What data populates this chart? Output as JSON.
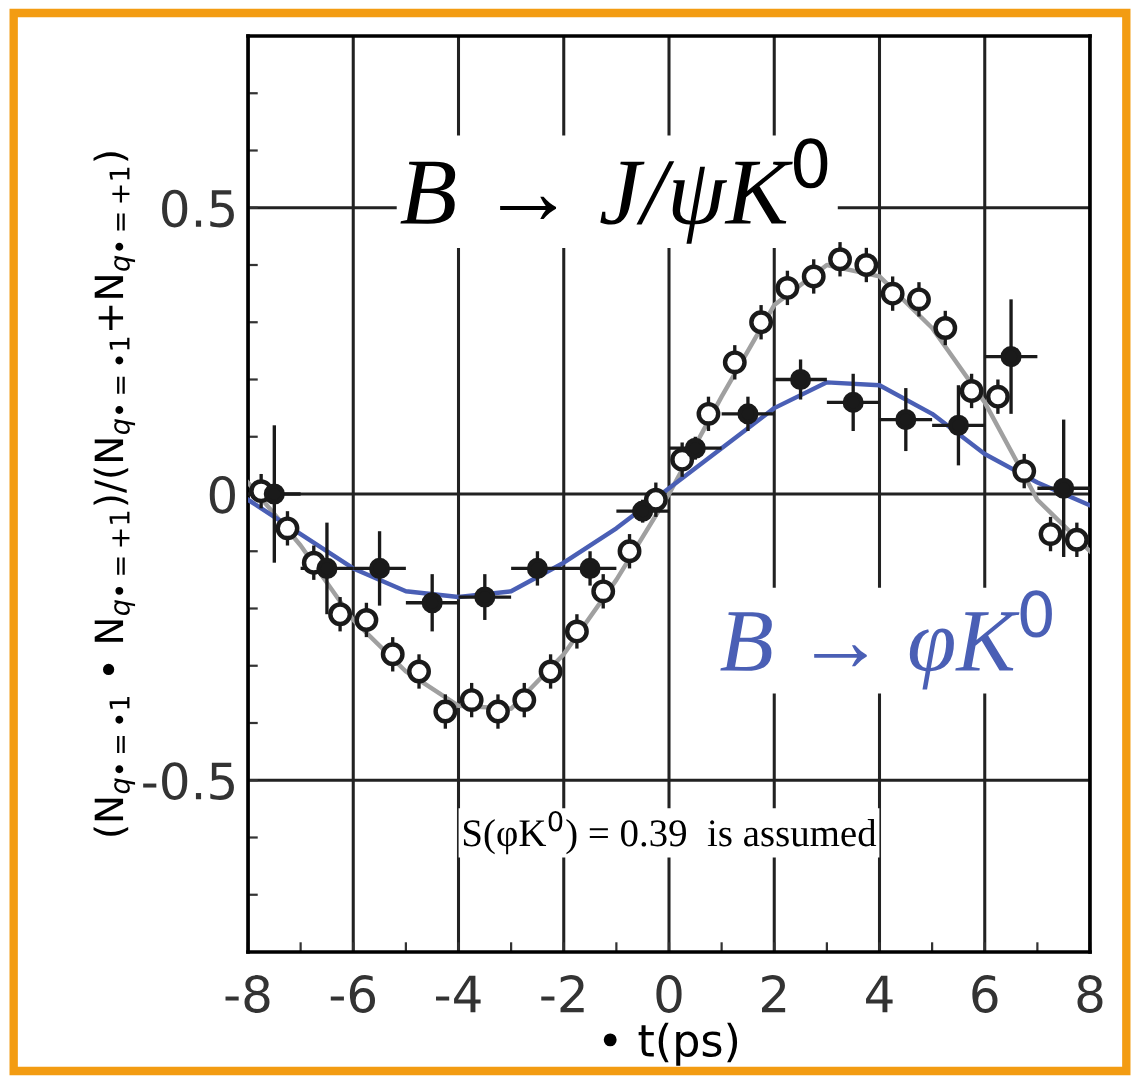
{
  "chart_data": {
    "type": "scatter",
    "xlabel": "• t(ps)",
    "ylabel": "(N$_{q•=•1}$ • N$_{q•=+1}$)/(N$_{q•=•1}$+N$_{q•=+1}$)",
    "annotations": [
      "B → J/ψK$^{0}$",
      "B → φK$^{0}$",
      "S(φK$^{0}$) = 0.39  is assumed"
    ],
    "xlim": [
      -8,
      8
    ],
    "ylim": [
      -0.8,
      0.8
    ],
    "xticks": [
      -8,
      {
        "value": -7,
        "label": null
      },
      -6,
      {
        "value": -5,
        "label": null
      },
      -4,
      {
        "value": -3,
        "label": null
      },
      -2,
      {
        "value": -1,
        "label": null
      },
      0,
      {
        "value": 1,
        "label": null
      },
      2,
      {
        "value": 3,
        "label": null
      },
      4,
      {
        "value": 5,
        "label": null
      },
      6,
      {
        "value": 7,
        "label": null
      },
      8
    ],
    "yticks": [
      {
        "value": -0.7,
        "label": null
      },
      {
        "value": -0.6,
        "label": null
      },
      -0.5,
      {
        "value": -0.4,
        "label": null
      },
      {
        "value": -0.3,
        "label": null
      },
      {
        "value": -0.2,
        "label": null
      },
      {
        "value": -0.1,
        "label": null
      },
      0,
      {
        "value": 0.1,
        "label": null
      },
      {
        "value": 0.2,
        "label": null
      },
      {
        "value": 0.3,
        "label": null
      },
      {
        "value": 0.4,
        "label": null
      },
      0.5,
      {
        "value": 0.6,
        "label": null
      },
      {
        "value": 0.7,
        "label": null
      }
    ],
    "grid": true,
    "legend": false,
    "series": [
      {
        "type": "line",
        "color": "#a0a0a0",
        "x": [
          -8,
          -7,
          -6,
          -5,
          -4,
          -3,
          -2,
          -1,
          0,
          1,
          2,
          3,
          4,
          5,
          6,
          7,
          8
        ],
        "values": [
          0.02,
          -0.09,
          -0.22,
          -0.31,
          -0.37,
          -0.375,
          -0.28,
          -0.15,
          0.0,
          0.17,
          0.33,
          0.4,
          0.38,
          0.29,
          0.16,
          -0.01,
          -0.1
        ]
      },
      {
        "type": "line",
        "color": "#4a5fb5",
        "x": [
          -8,
          -7,
          -6,
          -5,
          -4,
          -3,
          -2,
          -1,
          0,
          1,
          2,
          3,
          4,
          5,
          6,
          7,
          8
        ],
        "values": [
          -0.01,
          -0.07,
          -0.13,
          -0.17,
          -0.18,
          -0.17,
          -0.12,
          -0.06,
          0.01,
          0.08,
          0.15,
          0.195,
          0.19,
          0.14,
          0.07,
          0.02,
          -0.02
        ]
      },
      {
        "color": "#1a1a1a",
        "marker": "circle",
        "x": [
          -7.75,
          -7.25,
          -6.75,
          -6.25,
          -5.75,
          -5.25,
          -4.75,
          -4.25,
          -3.75,
          -3.25,
          -2.75,
          -2.25,
          -1.75,
          -1.25,
          -0.75,
          -0.25,
          0.25,
          0.75,
          1.25,
          1.75,
          2.25,
          2.75,
          3.25,
          3.75,
          4.25,
          4.75,
          5.25,
          5.75,
          6.25,
          6.75,
          7.25,
          7.75
        ],
        "values": [
          0.005,
          -0.06,
          -0.12,
          -0.21,
          -0.22,
          -0.28,
          -0.31,
          -0.38,
          -0.36,
          -0.38,
          -0.36,
          -0.31,
          -0.24,
          -0.17,
          -0.1,
          -0.01,
          0.06,
          0.14,
          0.23,
          0.3,
          0.36,
          0.38,
          0.41,
          0.4,
          0.35,
          0.34,
          0.29,
          0.18,
          0.17,
          0.04,
          -0.07,
          -0.08
        ],
        "errors": [
          0.03,
          0.03,
          0.03,
          0.03,
          0.03,
          0.03,
          0.03,
          0.03,
          0.03,
          0.03,
          0.03,
          0.03,
          0.03,
          0.03,
          0.03,
          0.03,
          0.03,
          0.03,
          0.03,
          0.03,
          0.03,
          0.03,
          0.03,
          0.03,
          0.03,
          0.03,
          0.03,
          0.03,
          0.03,
          0.03,
          0.03,
          0.03
        ]
      },
      {
        "color": "#1a1a1a",
        "marker": "circle",
        "x": [
          -7.5,
          -6.5,
          -5.5,
          -4.5,
          -3.5,
          -2.5,
          -1.5,
          -0.5,
          0.5,
          1.5,
          2.5,
          3.5,
          4.5,
          5.5,
          6.5,
          7.5
        ],
        "values": [
          0.0,
          -0.13,
          -0.13,
          -0.19,
          -0.18,
          -0.13,
          -0.13,
          -0.03,
          0.08,
          0.14,
          0.2,
          0.16,
          0.13,
          0.12,
          0.24,
          0.01
        ],
        "errors": [
          0.12,
          0.08,
          0.065,
          0.05,
          0.04,
          0.03,
          0.03,
          0.02,
          0.02,
          0.03,
          0.035,
          0.05,
          0.055,
          0.07,
          0.1,
          0.12
        ],
        "xerrors": [
          0.5,
          0.5,
          0.5,
          0.5,
          0.5,
          0.5,
          0.5,
          0.5,
          0.5,
          0.5,
          0.5,
          0.5,
          0.5,
          0.5,
          0.5,
          0.5
        ]
      }
    ]
  }
}
